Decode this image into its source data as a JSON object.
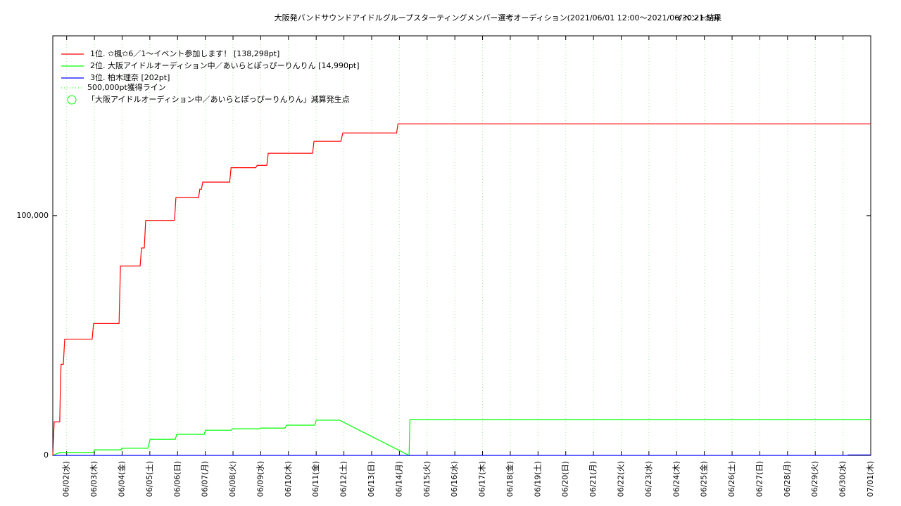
{
  "chart_data": {
    "type": "line",
    "title": "大阪発バンドサウンドアイドルグループスターティングメンバー選考オーディション(2021/06/01 12:00〜2021/06/30 21:59)",
    "subtitle": "イベント結果",
    "xlim": [
      1.5,
      31
    ],
    "ylim": [
      0,
      175000
    ],
    "yticks": [
      0,
      {
        "value": 100000,
        "label": "100,000"
      }
    ],
    "xticks": [
      {
        "value": 2,
        "label": "06/02(水)"
      },
      {
        "value": 3,
        "label": "06/03(木)"
      },
      {
        "value": 4,
        "label": "06/04(金)"
      },
      {
        "value": 5,
        "label": "06/05(土)"
      },
      {
        "value": 6,
        "label": "06/06(日)"
      },
      {
        "value": 7,
        "label": "06/07(月)"
      },
      {
        "value": 8,
        "label": "06/08(火)"
      },
      {
        "value": 9,
        "label": "06/09(水)"
      },
      {
        "value": 10,
        "label": "06/10(木)"
      },
      {
        "value": 11,
        "label": "06/11(金)"
      },
      {
        "value": 12,
        "label": "06/12(土)"
      },
      {
        "value": 13,
        "label": "06/13(日)"
      },
      {
        "value": 14,
        "label": "06/14(月)"
      },
      {
        "value": 15,
        "label": "06/15(火)"
      },
      {
        "value": 16,
        "label": "06/16(水)"
      },
      {
        "value": 17,
        "label": "06/17(木)"
      },
      {
        "value": 18,
        "label": "06/18(金)"
      },
      {
        "value": 19,
        "label": "06/19(土)"
      },
      {
        "value": 20,
        "label": "06/20(日)"
      },
      {
        "value": 21,
        "label": "06/21(月)"
      },
      {
        "value": 22,
        "label": "06/22(火)"
      },
      {
        "value": 23,
        "label": "06/23(水)"
      },
      {
        "value": 24,
        "label": "06/24(木)"
      },
      {
        "value": 25,
        "label": "06/25(金)"
      },
      {
        "value": 26,
        "label": "06/26(土)"
      },
      {
        "value": 27,
        "label": "06/27(日)"
      },
      {
        "value": 28,
        "label": "06/28(月)"
      },
      {
        "value": 29,
        "label": "06/29(火)"
      },
      {
        "value": 30,
        "label": "06/30(水)"
      },
      {
        "value": 31,
        "label": "07/01(木)"
      }
    ],
    "grid": true,
    "legend": "upper left",
    "series": [
      {
        "name": "1位. ✩楓✩6／1〜イベント参加します！ [138,298pt]",
        "color": "#ff0000",
        "x": [
          1.5,
          1.55,
          1.75,
          1.78,
          1.8,
          1.88,
          1.93,
          2.92,
          2.97,
          3.89,
          3.94,
          4.65,
          4.7,
          4.8,
          4.85,
          5.89,
          5.94,
          6.76,
          6.8,
          6.86,
          6.91,
          7.88,
          7.93,
          8.82,
          8.87,
          9.22,
          9.27,
          10.87,
          10.92,
          11.89,
          11.96,
          13.9,
          13.95,
          31
        ],
        "values": [
          0,
          14000,
          14000,
          32000,
          38000,
          38000,
          48500,
          48500,
          55000,
          55000,
          79000,
          79000,
          86500,
          86500,
          98000,
          98000,
          107500,
          107500,
          111000,
          111000,
          114000,
          114000,
          120000,
          120000,
          121000,
          121000,
          126000,
          126000,
          131000,
          131000,
          134500,
          134500,
          138298,
          138298
        ]
      },
      {
        "name": "2位. 大阪アイドルオーディション中／あいらとぽっぴーりんりん [14,990pt]",
        "color": "#00ff00",
        "x": [
          1.5,
          1.75,
          2.97,
          3.0,
          3.96,
          3.99,
          4.93,
          5.01,
          5.92,
          5.97,
          6.96,
          7.01,
          7.93,
          7.98,
          8.94,
          8.99,
          9.88,
          9.93,
          10.95,
          11.0,
          11.84,
          14.35,
          14.38,
          31
        ],
        "values": [
          0,
          1200,
          1200,
          2300,
          2300,
          3000,
          3000,
          6700,
          6700,
          8800,
          8800,
          10500,
          10500,
          11100,
          11100,
          11400,
          11400,
          12600,
          12600,
          14700,
          14700,
          0,
          14990,
          14990
        ]
      },
      {
        "name": "3位. 柏木理奈 [202pt]",
        "color": "#0000ff",
        "x": [
          1.5,
          30.15,
          30.2,
          31
        ],
        "values": [
          0,
          0,
          202,
          202
        ]
      }
    ],
    "reference_line": {
      "name": "500,000pt獲得ライン",
      "color": "#00ff00"
    },
    "marker_legend": {
      "name": "「大阪アイドルオーディション中／あいらとぽっぴーりんりん」減算発生点",
      "color": "#00ff00"
    }
  }
}
